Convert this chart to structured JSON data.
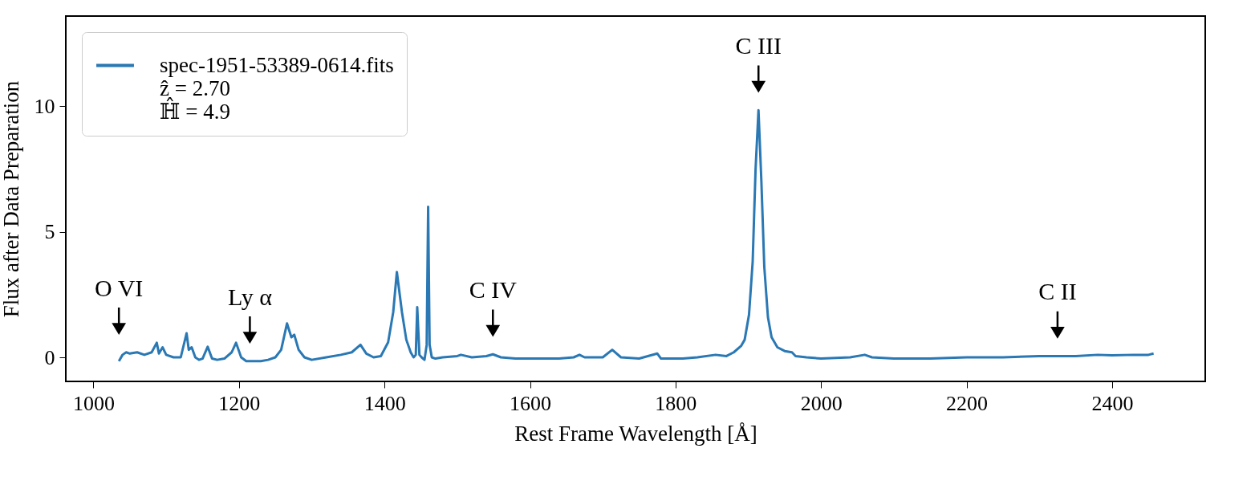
{
  "chart_data": {
    "type": "line",
    "xlabel": "Rest Frame Wavelength [Å]",
    "ylabel": "Flux after Data Preparation",
    "xlim": [
      962,
      2528
    ],
    "ylim": [
      -0.96,
      13.6
    ],
    "xticks": [
      1000,
      1200,
      1400,
      1600,
      1800,
      2000,
      2200,
      2400
    ],
    "yticks": [
      0,
      5,
      10
    ],
    "grid": false,
    "legend": "top left",
    "annotations": [
      {
        "text": "O VI",
        "x": 1035,
        "y": -0.15
      },
      {
        "text": "Ly α",
        "x": 1215,
        "y": -0.15
      },
      {
        "text": "C IV",
        "x": 1549,
        "y": 0.12
      },
      {
        "text": "C III",
        "x": 1914,
        "y": 9.85
      },
      {
        "text": "C II",
        "x": 2325,
        "y": 0.05
      }
    ],
    "series": [
      {
        "name": "spec-1951-53389-0614.fits\nẑ = 2.70\nℍ̂ = 4.9",
        "color": "#2a78b4",
        "x": [
          1035,
          1040,
          1045,
          1050,
          1060,
          1070,
          1080,
          1087,
          1090,
          1095,
          1100,
          1110,
          1120,
          1128,
          1131,
          1135,
          1140,
          1145,
          1150,
          1157,
          1163,
          1170,
          1180,
          1190,
          1196,
          1203,
          1210,
          1220,
          1230,
          1240,
          1250,
          1258,
          1266,
          1272,
          1276,
          1282,
          1290,
          1300,
          1320,
          1340,
          1355,
          1367,
          1375,
          1385,
          1395,
          1405,
          1412,
          1417,
          1424,
          1430,
          1436,
          1440,
          1443,
          1445,
          1448,
          1451,
          1455,
          1458,
          1460,
          1462,
          1465,
          1470,
          1480,
          1500,
          1505,
          1520,
          1540,
          1549,
          1560,
          1580,
          1600,
          1620,
          1640,
          1660,
          1668,
          1675,
          1700,
          1713,
          1725,
          1750,
          1775,
          1780,
          1810,
          1830,
          1855,
          1870,
          1880,
          1890,
          1895,
          1901,
          1906,
          1910,
          1914,
          1918,
          1922,
          1927,
          1932,
          1940,
          1950,
          1960,
          1965,
          1980,
          2000,
          2040,
          2060,
          2070,
          2100,
          2150,
          2200,
          2250,
          2300,
          2350,
          2380,
          2400,
          2430,
          2450,
          2457
        ],
        "values": [
          -0.15,
          0.1,
          0.2,
          0.15,
          0.2,
          0.1,
          0.2,
          0.58,
          0.15,
          0.4,
          0.1,
          0.0,
          0.0,
          0.96,
          0.3,
          0.4,
          0.0,
          -0.1,
          -0.05,
          0.42,
          -0.05,
          -0.1,
          -0.05,
          0.2,
          0.58,
          0.0,
          -0.15,
          -0.15,
          -0.15,
          -0.1,
          0.0,
          0.3,
          1.35,
          0.8,
          0.9,
          0.3,
          0.0,
          -0.1,
          0.0,
          0.1,
          0.2,
          0.5,
          0.15,
          0.0,
          0.05,
          0.6,
          1.8,
          3.4,
          1.8,
          0.7,
          0.2,
          0.0,
          0.1,
          2.0,
          0.1,
          0.0,
          -0.1,
          0.5,
          6.0,
          0.5,
          0.0,
          -0.05,
          0.0,
          0.05,
          0.1,
          0.0,
          0.05,
          0.12,
          0.0,
          -0.05,
          -0.05,
          -0.05,
          -0.05,
          0.0,
          0.1,
          0.0,
          0.0,
          0.3,
          0.0,
          -0.05,
          0.15,
          -0.05,
          -0.05,
          0.0,
          0.1,
          0.05,
          0.2,
          0.45,
          0.7,
          1.7,
          3.8,
          7.5,
          9.85,
          7.0,
          3.6,
          1.6,
          0.8,
          0.4,
          0.25,
          0.2,
          0.05,
          0.0,
          -0.05,
          0.0,
          0.1,
          0.0,
          -0.05,
          -0.05,
          0.0,
          0.0,
          0.05,
          0.05,
          0.1,
          0.08,
          0.1,
          0.1,
          0.15
        ]
      }
    ]
  }
}
